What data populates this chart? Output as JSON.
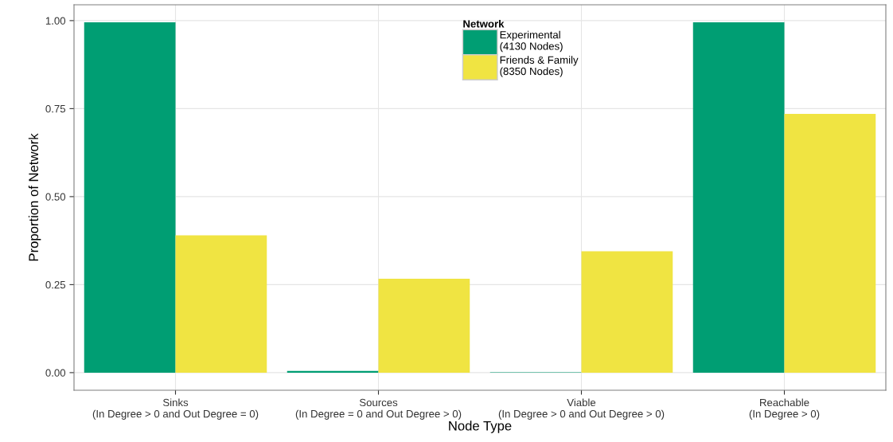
{
  "chart_data": {
    "type": "bar",
    "xlabel": "Node Type",
    "ylabel": "Proportion of Network",
    "categories": [
      "Sinks\n(In Degree > 0 and Out Degree = 0)",
      "Sources\n(In Degree = 0 and Out Degree > 0)",
      "Viable\n(In Degree > 0 and Out Degree > 0)",
      "Reachable\n(In Degree > 0)"
    ],
    "series": [
      {
        "name": "Experimental\n(4130 Nodes)",
        "color": "#009e73",
        "values": [
          0.995,
          0.005,
          0.001,
          0.995
        ]
      },
      {
        "name": "Friends & Family\n(8350 Nodes)",
        "color": "#f0e442",
        "values": [
          0.39,
          0.267,
          0.345,
          0.735
        ]
      }
    ],
    "legend_title": "Network",
    "legend": "top",
    "grid": true,
    "ylim": [
      -0.05,
      1.045
    ],
    "yticks": [
      {
        "value": 0,
        "label": "0.00"
      },
      {
        "value": 0.25,
        "label": "0.25"
      },
      {
        "value": 0.5,
        "label": "0.50"
      },
      {
        "value": 0.75,
        "label": "0.75"
      },
      {
        "value": 1,
        "label": "1.00"
      }
    ]
  }
}
